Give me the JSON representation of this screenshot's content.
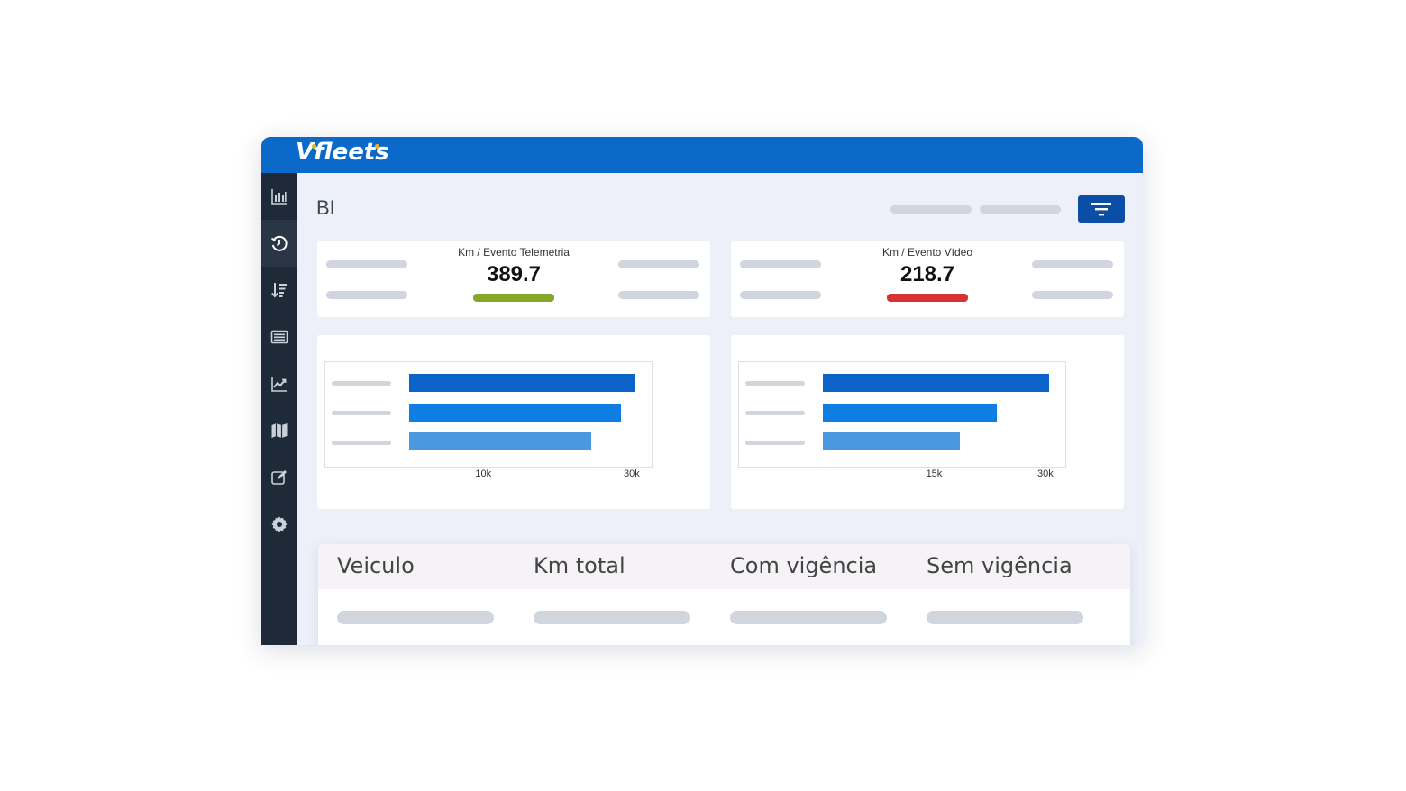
{
  "app": {
    "logo_text": "Vfleets",
    "brand_color": "#0b6ac9",
    "logo_dot_color": "#f2b31a"
  },
  "sidebar": {
    "items": [
      {
        "icon": "bar-chart-icon"
      },
      {
        "icon": "history-icon",
        "active": true
      },
      {
        "icon": "sort-icon"
      },
      {
        "icon": "list-icon"
      },
      {
        "icon": "line-chart-icon"
      },
      {
        "icon": "map-icon"
      },
      {
        "icon": "edit-icon"
      },
      {
        "icon": "gear-icon"
      }
    ]
  },
  "page": {
    "title": "BI",
    "filter_button_icon": "filter-icon"
  },
  "kpis": [
    {
      "title": "Km / Evento Telemetria",
      "value": "389.7",
      "status_color": "#86a82a"
    },
    {
      "title": "Km / Evento Vídeo",
      "value": "218.7",
      "status_color": "#d63234"
    }
  ],
  "charts": [
    {
      "ticks": [
        "10k",
        "30k"
      ]
    },
    {
      "ticks": [
        "15k",
        "30k"
      ]
    }
  ],
  "chart_data": [
    {
      "type": "bar",
      "orientation": "horizontal",
      "categories": [
        "",
        "",
        ""
      ],
      "values": [
        30500,
        28500,
        24500
      ],
      "xlim": [
        0,
        30000
      ],
      "xticks": [
        10000,
        30000
      ],
      "colors": [
        "#0b63c8",
        "#0f7ee2",
        "#4a99e0"
      ]
    },
    {
      "type": "bar",
      "orientation": "horizontal",
      "categories": [
        "",
        "",
        ""
      ],
      "values": [
        30500,
        23500,
        18500
      ],
      "xlim": [
        0,
        30000
      ],
      "xticks": [
        15000,
        30000
      ],
      "colors": [
        "#0b63c8",
        "#0f7ee2",
        "#4a99e0"
      ]
    }
  ],
  "table": {
    "headers": [
      "Veiculo",
      "Km total",
      "Com vigência",
      "Sem vigência"
    ]
  }
}
